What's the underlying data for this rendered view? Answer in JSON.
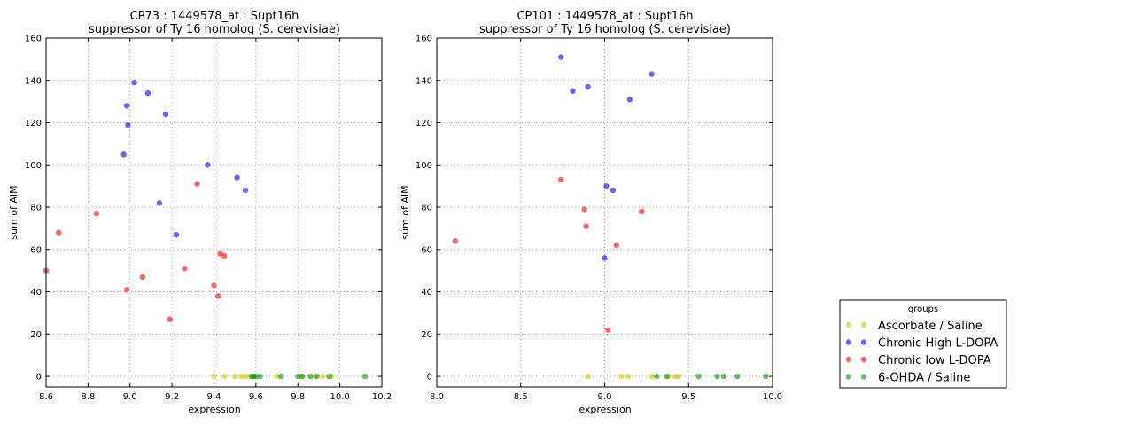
{
  "colors": {
    "Ascorbate / Saline": "#c8c800",
    "Chronic High L-DOPA": "#0000ee",
    "Chronic low L-DOPA": "#ee0000",
    "6-OHDA / Saline": "#0a8a0a"
  },
  "legend": {
    "title": "groups",
    "placement": "right",
    "entries": [
      "Ascorbate / Saline",
      "Chronic High L-DOPA",
      "Chronic low L-DOPA",
      "6-OHDA / Saline"
    ]
  },
  "chart_data": [
    {
      "type": "scatter",
      "title": "CP73 : 1449578_at : Supt16h",
      "subtitle": "suppressor of Ty 16 homolog (S. cerevisiae)",
      "xlabel": "expression",
      "ylabel": "sum of AIM",
      "xlim": [
        8.6,
        10.2
      ],
      "ylim": [
        -5,
        160
      ],
      "xticks": [
        "8.6",
        "8.8",
        "9.0",
        "9.2",
        "9.4",
        "9.6",
        "9.8",
        "10.0",
        "10.2"
      ],
      "yticks": [
        "0",
        "20",
        "40",
        "60",
        "80",
        "100",
        "120",
        "140",
        "160"
      ],
      "grid": true,
      "series": [
        {
          "name": "Ascorbate / Saline",
          "x": [
            9.4,
            9.45,
            9.5,
            9.53,
            9.55,
            9.57,
            9.7,
            9.82,
            9.88,
            9.92,
            9.96
          ],
          "y": [
            0,
            0,
            0,
            0,
            0,
            0,
            0,
            0,
            0,
            0,
            0
          ]
        },
        {
          "name": "Chronic High L-DOPA",
          "x": [
            8.97,
            8.985,
            8.99,
            9.02,
            9.085,
            9.14,
            9.17,
            9.22,
            9.37,
            9.51,
            9.55
          ],
          "y": [
            105,
            128,
            119,
            139,
            134,
            82,
            124,
            67,
            100,
            94,
            88
          ]
        },
        {
          "name": "Chronic low L-DOPA",
          "x": [
            8.6,
            8.66,
            8.84,
            8.985,
            9.06,
            9.19,
            9.26,
            9.32,
            9.4,
            9.42,
            9.43,
            9.45
          ],
          "y": [
            50,
            68,
            77,
            41,
            47,
            27,
            51,
            91,
            43,
            38,
            58,
            57
          ]
        },
        {
          "name": "6-OHDA / Saline",
          "x": [
            9.58,
            9.59,
            9.6,
            9.62,
            9.72,
            9.8,
            9.82,
            9.86,
            9.89,
            9.95,
            10.12
          ],
          "y": [
            0,
            0,
            0,
            0,
            0,
            0,
            0,
            0,
            0,
            0,
            0
          ]
        }
      ]
    },
    {
      "type": "scatter",
      "title": "CP101 : 1449578_at : Supt16h",
      "subtitle": "suppressor of Ty 16 homolog (S. cerevisiae)",
      "xlabel": "expression",
      "ylabel": "sum of AIM",
      "xlim": [
        8.0,
        10.0
      ],
      "ylim": [
        -5,
        160
      ],
      "xticks": [
        "8.0",
        "8.5",
        "9.0",
        "9.5",
        "10.0"
      ],
      "yticks": [
        "0",
        "20",
        "40",
        "60",
        "80",
        "100",
        "120",
        "140",
        "160"
      ],
      "grid": true,
      "series": [
        {
          "name": "Ascorbate / Saline",
          "x": [
            8.9,
            9.1,
            9.14,
            9.28,
            9.38,
            9.42,
            9.44
          ],
          "y": [
            0,
            0,
            0,
            0,
            0,
            0,
            0
          ]
        },
        {
          "name": "Chronic High L-DOPA",
          "x": [
            8.74,
            8.81,
            8.9,
            9.0,
            9.01,
            9.05,
            9.15,
            9.28
          ],
          "y": [
            151,
            135,
            137,
            56,
            90,
            88,
            131,
            143
          ]
        },
        {
          "name": "Chronic low L-DOPA",
          "x": [
            8.11,
            8.74,
            8.88,
            8.89,
            9.02,
            9.07,
            9.22
          ],
          "y": [
            64,
            93,
            79,
            71,
            22,
            62,
            78
          ]
        },
        {
          "name": "6-OHDA / Saline",
          "x": [
            9.31,
            9.37,
            9.56,
            9.67,
            9.71,
            9.79,
            9.96
          ],
          "y": [
            0,
            0,
            0,
            0,
            0,
            0,
            0
          ]
        }
      ]
    }
  ]
}
